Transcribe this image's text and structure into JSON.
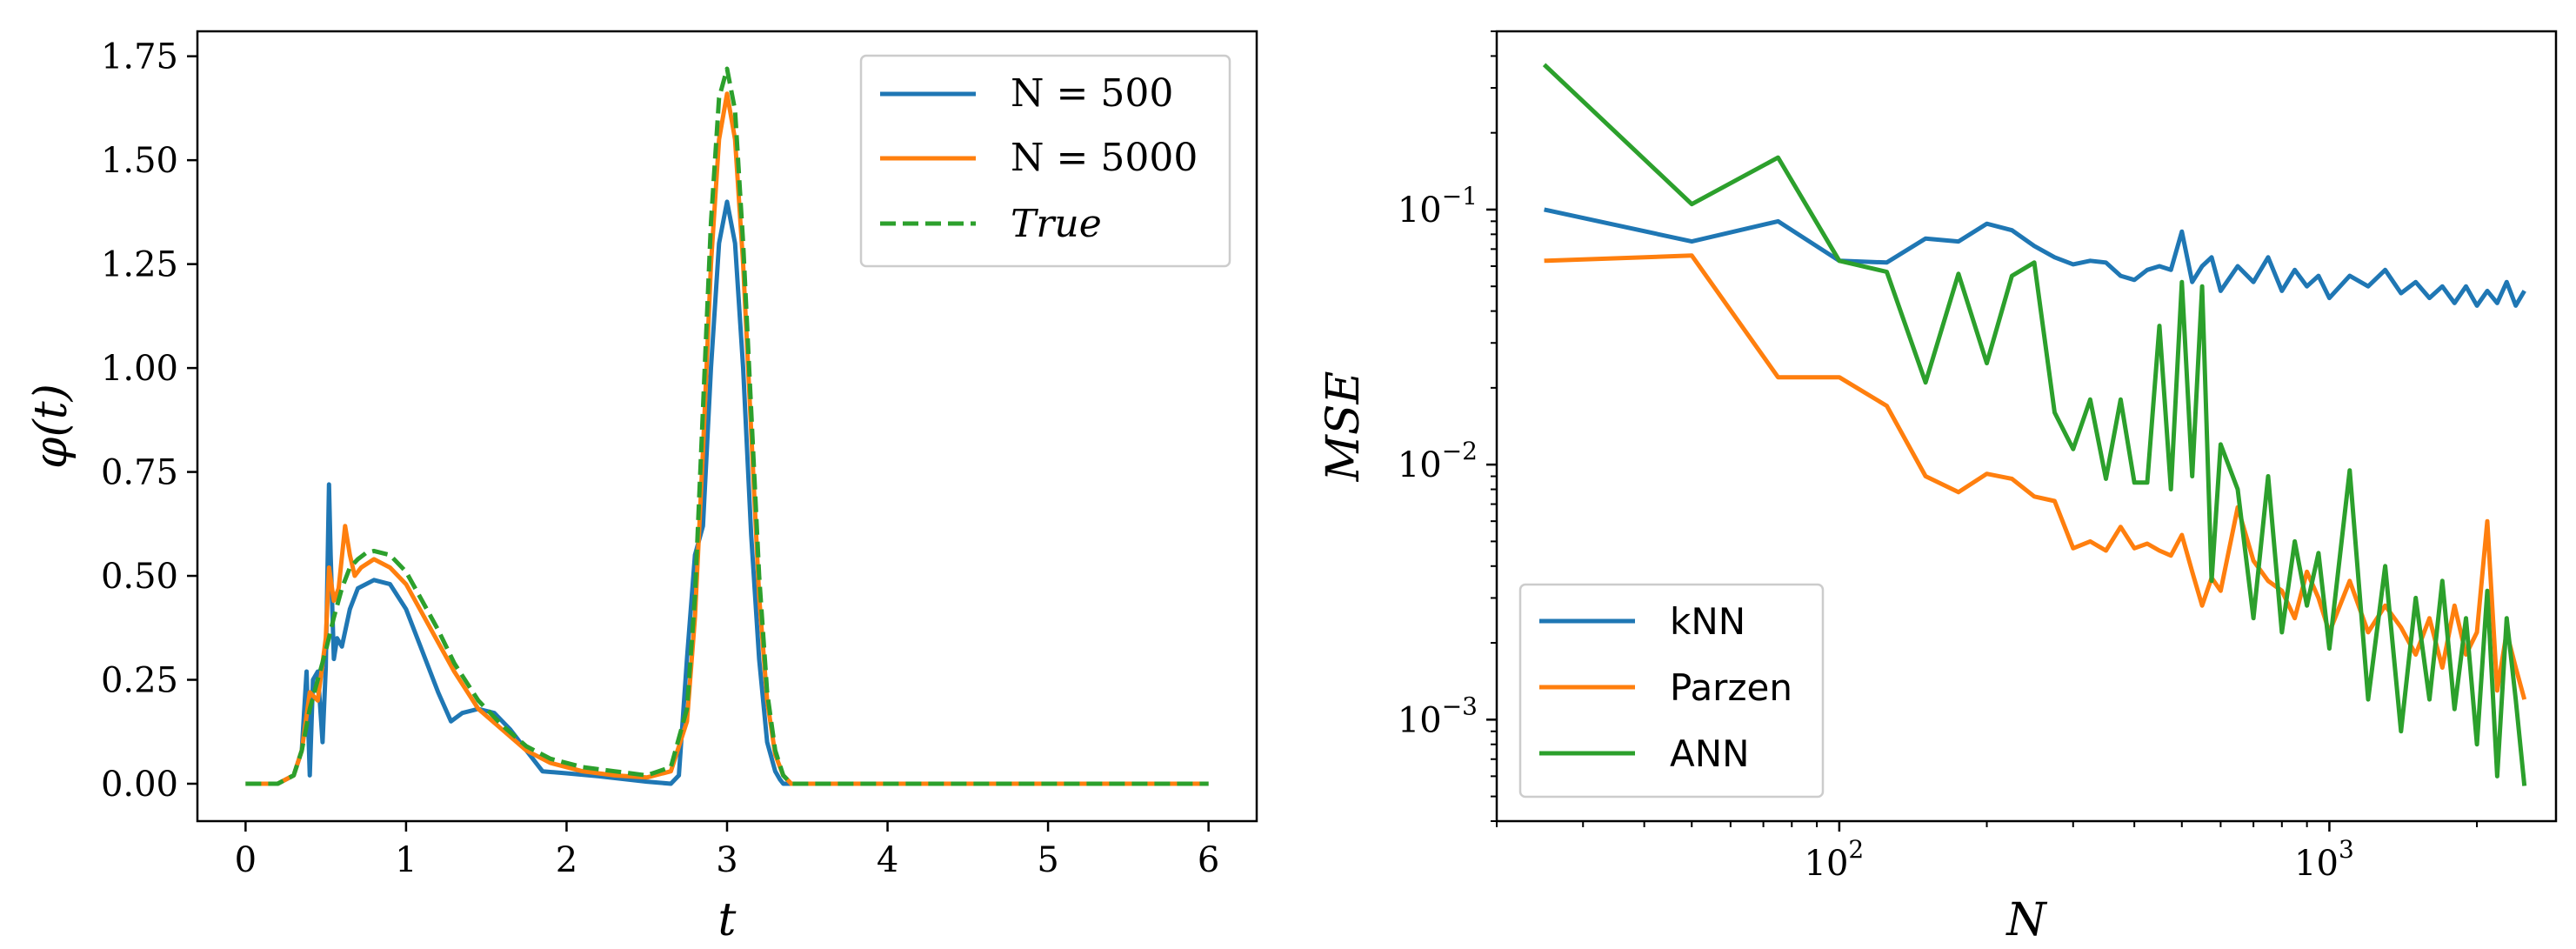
{
  "chart_data": [
    {
      "type": "line",
      "xlabel": "t",
      "ylabel": "φ(t)",
      "xlim": [
        -0.3,
        6.3
      ],
      "ylim": [
        -0.09,
        1.81
      ],
      "xticks": [
        0,
        1,
        2,
        3,
        4,
        5,
        6
      ],
      "xtick_labels": [
        "0",
        "1",
        "2",
        "3",
        "4",
        "5",
        "6"
      ],
      "yticks": [
        0.0,
        0.25,
        0.5,
        0.75,
        1.0,
        1.25,
        1.5,
        1.75
      ],
      "ytick_labels": [
        "0.00",
        "0.25",
        "0.50",
        "0.75",
        "1.00",
        "1.25",
        "1.50",
        "1.75"
      ],
      "legend_position": "top-right",
      "series": [
        {
          "name": "N = 500",
          "color": "#1f77b4",
          "dash": "solid",
          "x": [
            0,
            0.2,
            0.3,
            0.35,
            0.38,
            0.4,
            0.42,
            0.45,
            0.48,
            0.5,
            0.52,
            0.53,
            0.55,
            0.57,
            0.6,
            0.65,
            0.7,
            0.8,
            0.9,
            1.0,
            1.1,
            1.2,
            1.28,
            1.35,
            1.45,
            1.55,
            1.65,
            1.75,
            1.85,
            2.0,
            2.2,
            2.5,
            2.65,
            2.7,
            2.75,
            2.8,
            2.85,
            2.9,
            2.95,
            3.0,
            3.05,
            3.1,
            3.15,
            3.2,
            3.25,
            3.3,
            3.33,
            3.35,
            3.5,
            4,
            5,
            6
          ],
          "y": [
            0,
            0,
            0.02,
            0.08,
            0.27,
            0.02,
            0.25,
            0.27,
            0.1,
            0.28,
            0.72,
            0.55,
            0.3,
            0.35,
            0.33,
            0.42,
            0.47,
            0.49,
            0.48,
            0.42,
            0.32,
            0.22,
            0.15,
            0.17,
            0.18,
            0.17,
            0.13,
            0.08,
            0.03,
            0.025,
            0.018,
            0.005,
            0.0,
            0.02,
            0.3,
            0.55,
            0.62,
            1.0,
            1.3,
            1.4,
            1.3,
            1.0,
            0.6,
            0.3,
            0.1,
            0.03,
            0.01,
            0.0,
            0.0,
            0.0,
            0.0,
            0.0
          ]
        },
        {
          "name": "N = 5000",
          "color": "#ff7f0e",
          "dash": "solid",
          "x": [
            0,
            0.2,
            0.3,
            0.35,
            0.4,
            0.45,
            0.5,
            0.52,
            0.55,
            0.58,
            0.62,
            0.65,
            0.68,
            0.72,
            0.8,
            0.9,
            1.0,
            1.1,
            1.2,
            1.3,
            1.45,
            1.6,
            1.75,
            1.9,
            2.1,
            2.3,
            2.5,
            2.65,
            2.75,
            2.8,
            2.85,
            2.9,
            2.95,
            3.0,
            3.05,
            3.1,
            3.15,
            3.2,
            3.25,
            3.3,
            3.35,
            3.4,
            3.5,
            4,
            5,
            6
          ],
          "y": [
            0,
            0,
            0.02,
            0.08,
            0.22,
            0.2,
            0.35,
            0.52,
            0.44,
            0.47,
            0.62,
            0.55,
            0.5,
            0.52,
            0.54,
            0.52,
            0.48,
            0.41,
            0.34,
            0.27,
            0.18,
            0.13,
            0.08,
            0.05,
            0.03,
            0.02,
            0.015,
            0.03,
            0.15,
            0.4,
            0.8,
            1.25,
            1.55,
            1.66,
            1.55,
            1.25,
            0.85,
            0.45,
            0.2,
            0.07,
            0.02,
            0.0,
            0.0,
            0.0,
            0.0,
            0.0
          ]
        },
        {
          "name": "True",
          "color": "#2ca02c",
          "dash": "dashed",
          "x": [
            0,
            0.2,
            0.3,
            0.35,
            0.4,
            0.45,
            0.5,
            0.55,
            0.6,
            0.65,
            0.7,
            0.75,
            0.8,
            0.9,
            1.0,
            1.1,
            1.2,
            1.3,
            1.45,
            1.6,
            1.75,
            1.9,
            2.1,
            2.3,
            2.5,
            2.65,
            2.75,
            2.8,
            2.85,
            2.9,
            2.95,
            3.0,
            3.05,
            3.1,
            3.15,
            3.2,
            3.25,
            3.3,
            3.35,
            3.4,
            3.5,
            4,
            5,
            6
          ],
          "y": [
            0,
            0,
            0.02,
            0.08,
            0.18,
            0.25,
            0.32,
            0.4,
            0.47,
            0.52,
            0.54,
            0.555,
            0.56,
            0.55,
            0.51,
            0.44,
            0.37,
            0.29,
            0.2,
            0.14,
            0.09,
            0.06,
            0.04,
            0.03,
            0.02,
            0.04,
            0.18,
            0.45,
            0.9,
            1.35,
            1.65,
            1.72,
            1.62,
            1.3,
            0.9,
            0.5,
            0.22,
            0.08,
            0.02,
            0.0,
            0.0,
            0.0,
            0.0,
            0.0
          ]
        }
      ]
    },
    {
      "type": "line",
      "xlabel": "N",
      "ylabel": "MSE",
      "xscale": "log",
      "yscale": "log",
      "xlim": [
        20,
        2900
      ],
      "ylim": [
        0.0004,
        0.5
      ],
      "xticks": [
        100,
        1000
      ],
      "xtick_labels": [
        "10",
        "10"
      ],
      "xtick_exponents": [
        "2",
        "3"
      ],
      "yticks": [
        0.001,
        0.01,
        0.1
      ],
      "ytick_labels": [
        "10",
        "10",
        "10"
      ],
      "ytick_exponents": [
        "−3",
        "−2",
        "−1"
      ],
      "legend_position": "bottom-left",
      "series": [
        {
          "name": "kNN",
          "color": "#1f77b4",
          "x": [
            25,
            50,
            75,
            100,
            125,
            150,
            175,
            200,
            225,
            250,
            275,
            300,
            325,
            350,
            375,
            400,
            425,
            450,
            475,
            500,
            525,
            550,
            575,
            600,
            650,
            700,
            750,
            800,
            850,
            900,
            950,
            1000,
            1100,
            1200,
            1300,
            1400,
            1500,
            1600,
            1700,
            1800,
            1900,
            2000,
            2100,
            2200,
            2300,
            2400,
            2500
          ],
          "y": [
            0.1,
            0.075,
            0.09,
            0.063,
            0.062,
            0.077,
            0.075,
            0.088,
            0.083,
            0.072,
            0.065,
            0.061,
            0.063,
            0.062,
            0.055,
            0.053,
            0.058,
            0.06,
            0.058,
            0.082,
            0.052,
            0.06,
            0.065,
            0.048,
            0.06,
            0.052,
            0.065,
            0.048,
            0.058,
            0.05,
            0.055,
            0.045,
            0.055,
            0.05,
            0.058,
            0.047,
            0.052,
            0.045,
            0.05,
            0.043,
            0.05,
            0.042,
            0.048,
            0.043,
            0.052,
            0.042,
            0.048
          ]
        },
        {
          "name": "Parzen",
          "color": "#ff7f0e",
          "x": [
            25,
            50,
            75,
            100,
            125,
            150,
            175,
            200,
            225,
            250,
            275,
            300,
            325,
            350,
            375,
            400,
            425,
            450,
            475,
            500,
            525,
            550,
            575,
            600,
            650,
            700,
            750,
            800,
            850,
            900,
            950,
            1000,
            1100,
            1200,
            1300,
            1400,
            1500,
            1600,
            1700,
            1800,
            1900,
            2000,
            2100,
            2200,
            2300,
            2400,
            2500
          ],
          "y": [
            0.063,
            0.066,
            0.022,
            0.022,
            0.017,
            0.009,
            0.0078,
            0.0092,
            0.0088,
            0.0075,
            0.0072,
            0.0047,
            0.005,
            0.0046,
            0.0057,
            0.0047,
            0.0049,
            0.0046,
            0.0044,
            0.0053,
            0.0038,
            0.0028,
            0.0036,
            0.0032,
            0.0068,
            0.0042,
            0.0035,
            0.0032,
            0.0025,
            0.0038,
            0.003,
            0.0022,
            0.0035,
            0.0022,
            0.0028,
            0.0023,
            0.0018,
            0.0025,
            0.0016,
            0.0028,
            0.0018,
            0.0022,
            0.006,
            0.0013,
            0.0022,
            0.0016,
            0.0012
          ]
        },
        {
          "name": "ANN",
          "color": "#2ca02c",
          "x": [
            25,
            50,
            75,
            100,
            125,
            150,
            175,
            200,
            225,
            250,
            275,
            300,
            325,
            350,
            375,
            400,
            425,
            450,
            475,
            500,
            525,
            550,
            575,
            600,
            650,
            700,
            750,
            800,
            850,
            900,
            950,
            1000,
            1100,
            1200,
            1300,
            1400,
            1500,
            1600,
            1700,
            1800,
            1900,
            2000,
            2100,
            2200,
            2300,
            2400,
            2500
          ],
          "y": [
            0.37,
            0.105,
            0.16,
            0.063,
            0.057,
            0.021,
            0.056,
            0.025,
            0.055,
            0.062,
            0.016,
            0.0115,
            0.018,
            0.0088,
            0.018,
            0.0085,
            0.0085,
            0.035,
            0.008,
            0.052,
            0.009,
            0.05,
            0.0035,
            0.012,
            0.008,
            0.0025,
            0.009,
            0.0022,
            0.005,
            0.0028,
            0.0045,
            0.0019,
            0.0095,
            0.0012,
            0.004,
            0.0009,
            0.003,
            0.0012,
            0.0035,
            0.0011,
            0.0025,
            0.0008,
            0.0032,
            0.0006,
            0.0025,
            0.0012,
            0.00055
          ]
        }
      ]
    }
  ]
}
